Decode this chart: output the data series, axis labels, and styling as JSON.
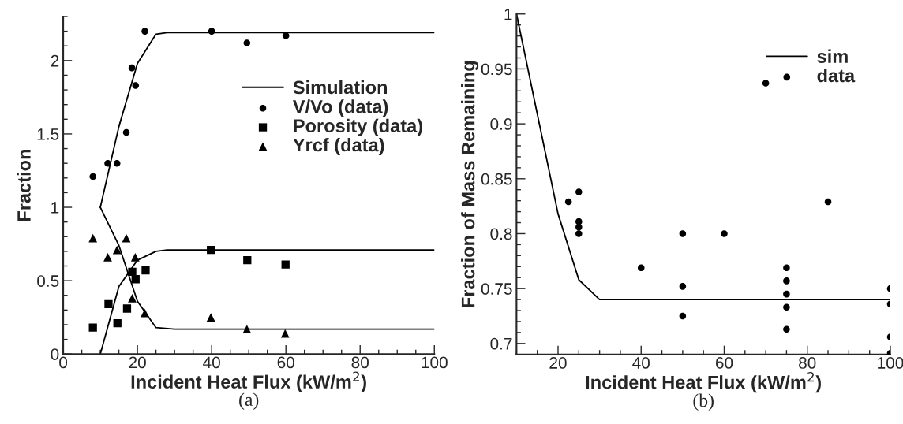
{
  "chart_data": [
    {
      "type": "scatter",
      "xlabel": "Incident Heat Flux (kW/m$^{2}$)",
      "ylabel": "Fraction",
      "xlim": [
        0,
        100
      ],
      "xticks": [
        0,
        20,
        40,
        60,
        80,
        100
      ],
      "ylim": [
        0,
        2.3
      ],
      "yticks": [
        0,
        0.5,
        1,
        1.5,
        2
      ],
      "legend": "right",
      "grid": false,
      "annotations": [
        "(a)"
      ],
      "series": [
        {
          "name": "Simulation",
          "type": "line",
          "color": "#000000",
          "marker": "none",
          "x": [
            10,
            15,
            20,
            25,
            28,
            100
          ],
          "values": [
            1.0,
            1.55,
            1.98,
            2.18,
            2.19,
            2.19
          ]
        },
        {
          "name": "V/Vo (data)",
          "color": "#000000",
          "marker": "circle",
          "x": [
            8,
            12,
            14.5,
            17,
            18.5,
            19.5,
            22,
            40,
            49.5,
            60
          ],
          "values": [
            1.21,
            1.3,
            1.3,
            1.51,
            1.95,
            1.83,
            2.2,
            2.2,
            2.12,
            2.17
          ]
        },
        {
          "name": "Porosity (data)",
          "color": "#000000",
          "marker": "square",
          "x": [
            8,
            12.2,
            14.6,
            17.2,
            18.6,
            19.5,
            22.2,
            39.8,
            49.6,
            59.9
          ],
          "values": [
            0.18,
            0.34,
            0.21,
            0.31,
            0.56,
            0.51,
            0.57,
            0.71,
            0.64,
            0.61
          ]
        },
        {
          "name": "Yrcf (data)",
          "color": "#000000",
          "marker": "triangle",
          "x": [
            8,
            12,
            14.5,
            17,
            19.4,
            18.6,
            22,
            39.8,
            49.5,
            59.8
          ],
          "values": [
            0.79,
            0.66,
            0.71,
            0.79,
            0.66,
            0.38,
            0.28,
            0.25,
            0.17,
            0.14
          ]
        },
        {
          "type": "line",
          "color": "#000000",
          "marker": "none",
          "x": [
            10,
            15,
            20,
            25,
            28,
            100
          ],
          "values": [
            0,
            0.46,
            0.64,
            0.7,
            0.71,
            0.71
          ]
        },
        {
          "type": "line",
          "color": "#000000",
          "marker": "none",
          "x": [
            10,
            15,
            20,
            25,
            30,
            100
          ],
          "values": [
            1.0,
            0.74,
            0.36,
            0.18,
            0.17,
            0.17
          ]
        }
      ]
    },
    {
      "type": "scatter",
      "xlabel": "Incident Heat Flux (kW/m$^{2}$)",
      "ylabel": "Fraction of Mass Remaining",
      "xlim": [
        10,
        100
      ],
      "xticks": [
        20,
        40,
        60,
        80,
        100
      ],
      "ylim": [
        0.69,
        1
      ],
      "yticks": [
        0.7,
        0.75,
        0.8,
        0.85,
        0.9,
        0.95,
        1
      ],
      "legend": "top right",
      "grid": false,
      "annotations": [
        "(b)"
      ],
      "series": [
        {
          "name": "sim",
          "type": "line",
          "color": "#000000",
          "marker": "none",
          "x": [
            10,
            20,
            25,
            30,
            100
          ],
          "values": [
            1.0,
            0.818,
            0.758,
            0.74,
            0.74
          ]
        },
        {
          "name": "data",
          "color": "#000000",
          "marker": "circle",
          "x": [
            22.5,
            25,
            25,
            25,
            25,
            40,
            50,
            50,
            50,
            60,
            70,
            75,
            75,
            75,
            75,
            75,
            85,
            100,
            100,
            100,
            100
          ],
          "values": [
            0.829,
            0.838,
            0.811,
            0.806,
            0.8,
            0.769,
            0.8,
            0.752,
            0.725,
            0.8,
            0.937,
            0.769,
            0.757,
            0.745,
            0.733,
            0.713,
            0.829,
            0.75,
            0.736,
            0.706,
            0.691
          ]
        }
      ]
    }
  ]
}
